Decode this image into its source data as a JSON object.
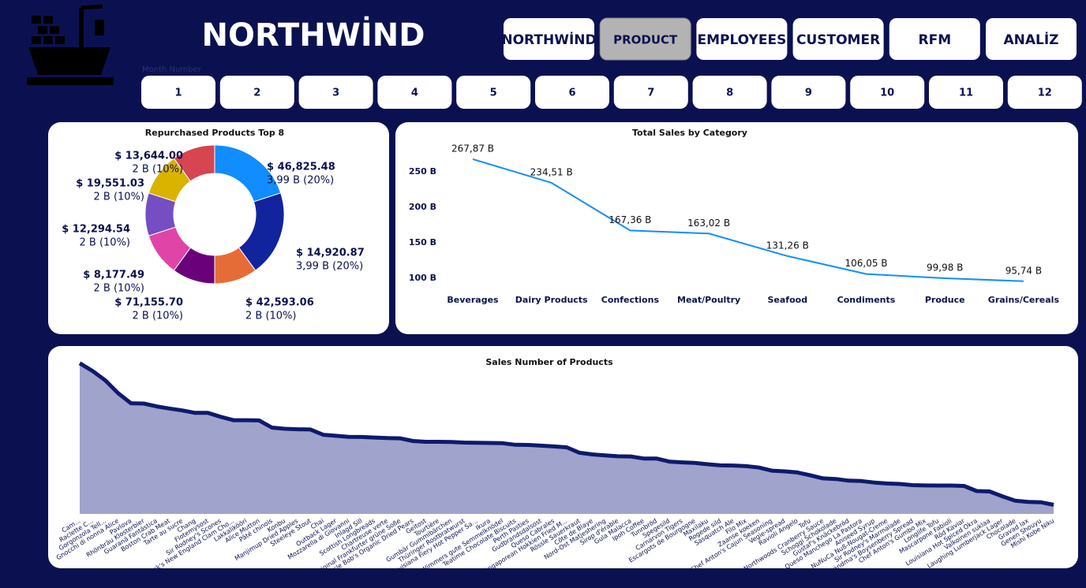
{
  "header": {
    "title": "NORTHWİND"
  },
  "nav": {
    "items": [
      "NORTHWİND",
      "PRODUCT",
      "EMPLOYEES",
      "CUSTOMER",
      "RFM",
      "ANALİZ"
    ],
    "active": 1
  },
  "slicer": {
    "label": "Month Number",
    "options": [
      1,
      2,
      3,
      4,
      5,
      6,
      7,
      8,
      9,
      10,
      11,
      12
    ]
  },
  "chart_data": [
    {
      "type": "pie",
      "title": "Repurchased Products Top 8",
      "values": [
        20,
        20,
        10,
        10,
        10,
        10,
        10,
        10
      ],
      "value_labels": [
        "3,99 B (20%)",
        "3,99 B (20%)",
        "2 B (10%)",
        "2 B (10%)",
        "2 B (10%)",
        "2 B (10%)",
        "2 B (10%)",
        "2 B (10%)"
      ],
      "amount_labels": [
        "$ 46,825.48",
        "$ 14,920.87",
        "$ 42,593.06",
        "$ 71,155.70",
        "$ 8,177.49",
        "$ 12,294.54",
        "$ 19,551.03",
        "$ 13,644.00"
      ],
      "colors": [
        "#118dff",
        "#12239e",
        "#e66c37",
        "#6b007b",
        "#e044a7",
        "#744ec2",
        "#d9b300",
        "#d64550"
      ]
    },
    {
      "type": "line",
      "title": "Total Sales by Category",
      "categories": [
        "Beverages",
        "Dairy Products",
        "Confections",
        "Meat/Poultry",
        "Seafood",
        "Condiments",
        "Produce",
        "Grains/Cereals"
      ],
      "values": [
        267.87,
        234.51,
        167.36,
        163.02,
        131.26,
        106.05,
        99.98,
        95.74
      ],
      "value_labels": [
        "267,87 B",
        "234,51 B",
        "167,36 B",
        "163,02 B",
        "131,26 B",
        "106,05 B",
        "99,98 B",
        "95,74 B"
      ],
      "color": "#118dff",
      "ylim": [
        90,
        280
      ],
      "yticks": [
        {
          "value": 100,
          "label": "100 B"
        },
        {
          "value": 150,
          "label": "150 B"
        },
        {
          "value": 200,
          "label": "200 B"
        },
        {
          "value": 250,
          "label": "250 B"
        }
      ]
    },
    {
      "type": "area",
      "title": "Sales Number of Products",
      "color": "#a0a3cc",
      "line_color": "#0f1a6b",
      "ylim": [
        0,
        1600
      ],
      "categories": [
        "Cam...",
        "Raclette C...",
        "Gorgonzola Tell...",
        "Gnocchi di nonna Alice",
        "Pavlova",
        "Rhönbräu Klosterbier",
        "Guaraná Fantástica",
        "Boston Crab Meat",
        "Tarte au sucre",
        "Chang",
        "Flotemysost",
        "Sir Rodney's Scones",
        "Jack's New England Clam Cho...",
        "Lakkalikööri",
        "Alice Mutton",
        "Pâté chinois",
        "Konbu",
        "Manjimup Dried Apples",
        "Steeleye Stout",
        "Chai",
        "Outback Lager",
        "Mozzarella di Giovanni",
        "Inlagd Sill",
        "Scottish Longbreads",
        "Chartreuse verte",
        "Original Frankfurter grüne Soße",
        "Uncle Bob's Organic Dried Pears",
        "Geitost",
        "Tourtière",
        "Gumbär Gummibärchen",
        "Thüringer Rostbratwurst",
        "Louisiana Fiery Hot Pepper Sa...",
        "Ikura",
        "Wimmers gute Semmelknödel",
        "Teatime Chocolate Biscuits",
        "Perth Pasties",
        "Gudbrandsdalsost",
        "Queso Cabrales",
        "Singaporean Hokkien Fried M...",
        "Rössle Sauerkraut",
        "Côte de Blaye",
        "Nord-Ost Matjeshering",
        "Sirop d'érable",
        "Gula Malacca",
        "Ipoh Coffee",
        "Tunnbröd",
        "Spegesild",
        "Carnarvon Tigers",
        "Escargots de Bourgogne",
        "Maxilaku",
        "Rogede sild",
        "Sasquatch Ale",
        "Filo Mix",
        "Zaanse koeken",
        "Chef Anton's Cajun Seasoning",
        "Vegie-spread",
        "Ravioli Angelo",
        "Tofu",
        "Northwoods Cranberry Sauce",
        "Schoggi Schokolade",
        "Gustaf's Knäckebröd",
        "Queso Manchego La Pastora",
        "Aniseed Syrup",
        "NuNuCa Nuß-Nougat-Creme",
        "Sir Rodney's Marmalade",
        "Grandma's Boysenberry Spread",
        "Chef Anton's Gumbo Mix",
        "Longlife Tofu",
        "Mascarpone Fabioli",
        "Röd Kaviar",
        "Louisiana Hot Spiced Okra",
        "Valkoinen suklaa",
        "Laughing Lumberjack Lager",
        "Chocolade",
        "Gravad lax",
        "Genen Shouyu",
        "Mishi Kobe Niku"
      ],
      "values": [
        1577,
        1496,
        1397,
        1263,
        1158,
        1155,
        1125,
        1103,
        1083,
        1057,
        1057,
        1016,
        981,
        981,
        978,
        903,
        891,
        886,
        883,
        828,
        817,
        806,
        805,
        799,
        793,
        791,
        763,
        755,
        755,
        753,
        746,
        745,
        742,
        740,
        723,
        722,
        714,
        706,
        697,
        640,
        623,
        612,
        603,
        601,
        580,
        580,
        548,
        539,
        534,
        520,
        508,
        506,
        500,
        485,
        453,
        445,
        434,
        404,
        372,
        365,
        348,
        344,
        328,
        318,
        313,
        301,
        298,
        297,
        297,
        293,
        239,
        235,
        184,
        138,
        125,
        122,
        95
      ]
    }
  ]
}
